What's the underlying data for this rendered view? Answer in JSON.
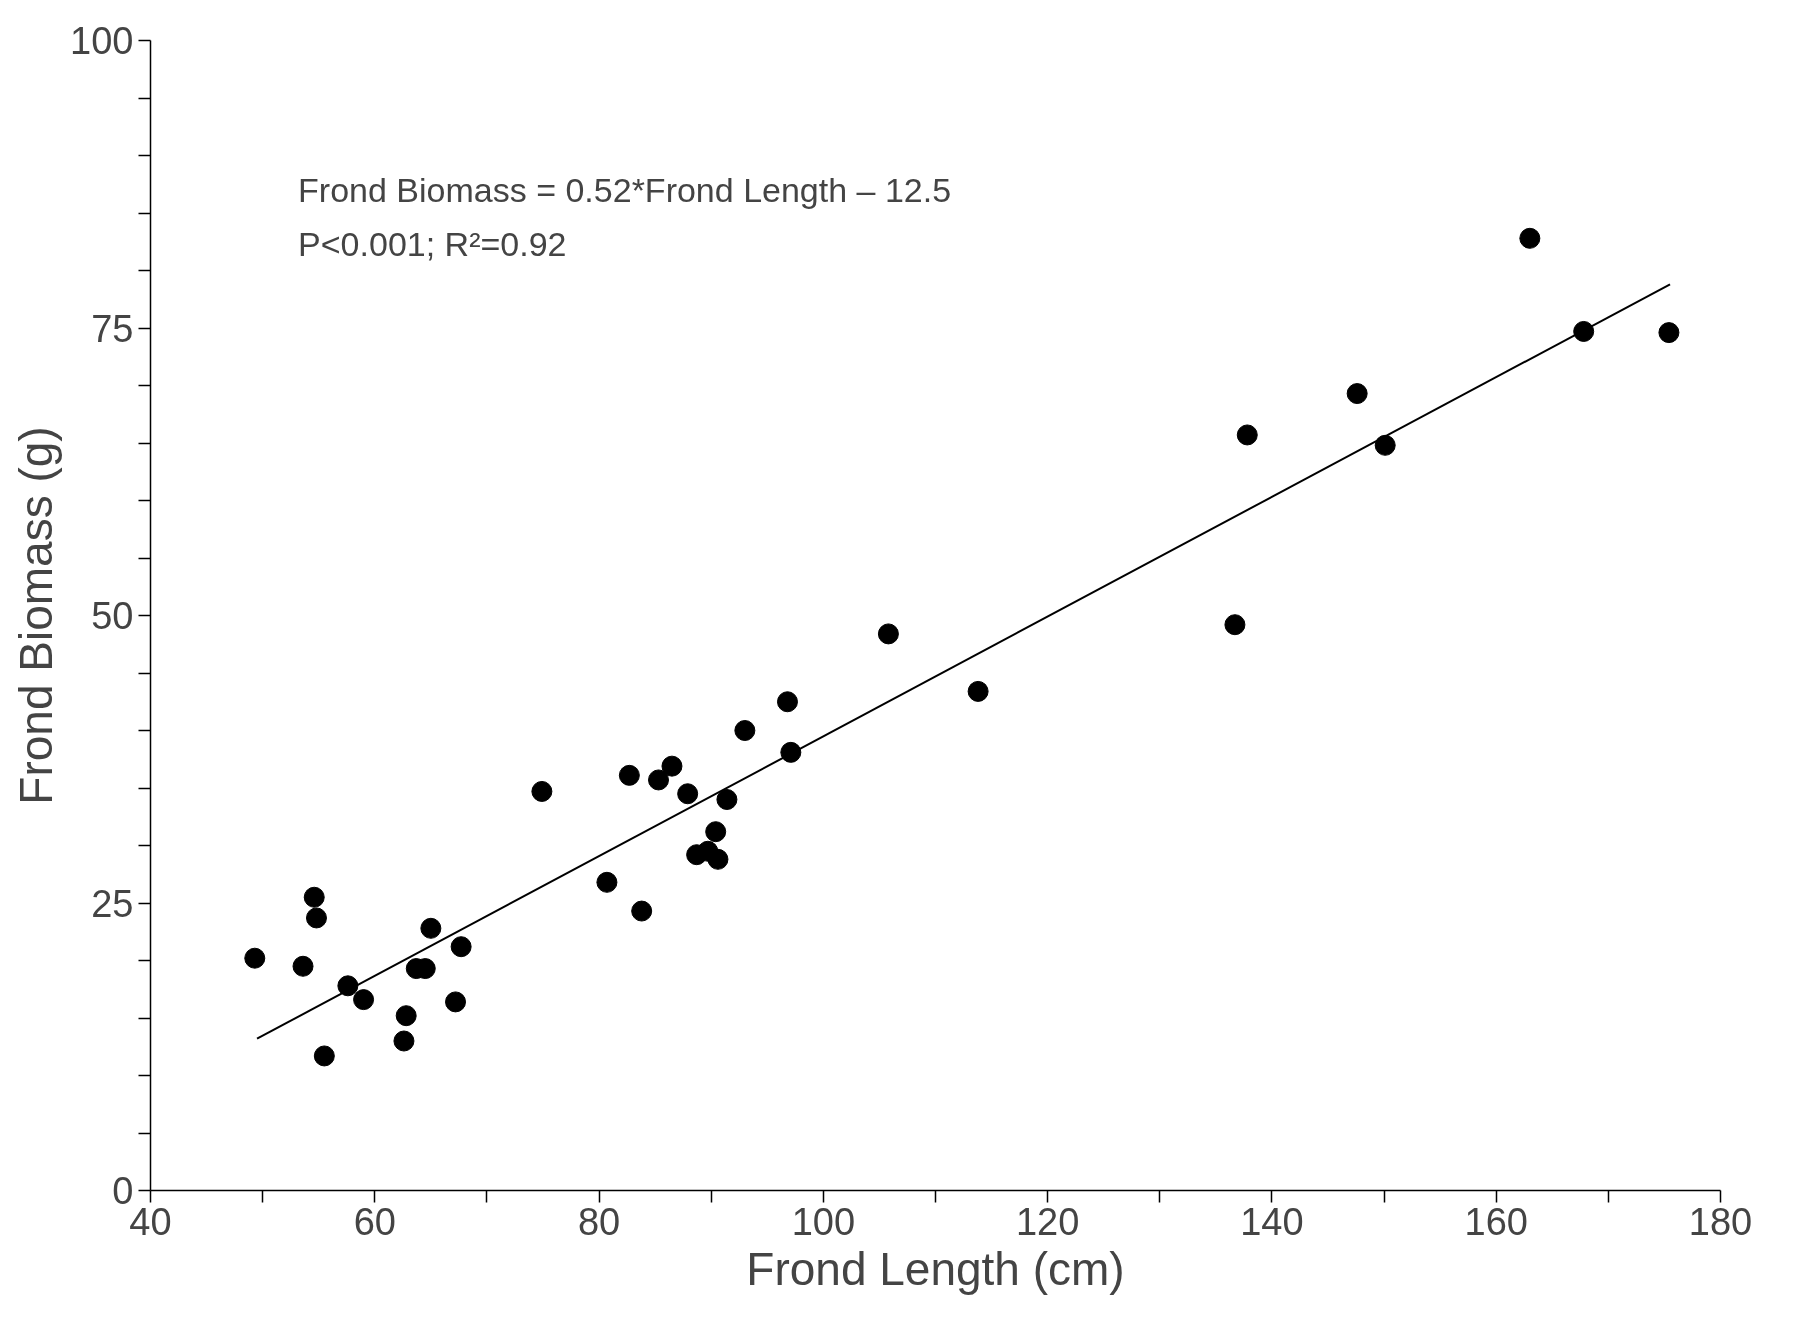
{
  "chart_data": {
    "type": "scatter",
    "xlabel": "Frond Length (cm)",
    "ylabel": "Frond Biomass (g)",
    "xlim": [
      40,
      180
    ],
    "ylim": [
      0,
      100
    ],
    "xticks": [
      40,
      {
        "value": 50,
        "label": null
      },
      60,
      {
        "value": 70,
        "label": null
      },
      80,
      {
        "value": 90,
        "label": null
      },
      100,
      {
        "value": 110,
        "label": null
      },
      120,
      {
        "value": 130,
        "label": null
      },
      140,
      {
        "value": 150,
        "label": null
      },
      160,
      {
        "value": 170,
        "label": null
      },
      180
    ],
    "yticks": [
      0,
      {
        "value": 5,
        "label": null
      },
      {
        "value": 10,
        "label": null
      },
      {
        "value": 15,
        "label": null
      },
      {
        "value": 20,
        "label": null
      },
      25,
      {
        "value": 30,
        "label": null
      },
      {
        "value": 35,
        "label": null
      },
      {
        "value": 40,
        "label": null
      },
      {
        "value": 45,
        "label": null
      },
      50,
      {
        "value": 55,
        "label": null
      },
      {
        "value": 60,
        "label": null
      },
      {
        "value": 65,
        "label": null
      },
      {
        "value": 70,
        "label": null
      },
      75,
      {
        "value": 80,
        "label": null
      },
      {
        "value": 85,
        "label": null
      },
      {
        "value": 90,
        "label": null
      },
      {
        "value": 95,
        "label": null
      },
      100
    ],
    "grid": false,
    "annotations": [
      "Frond Biomass = 0.52*Frond Length – 12.5",
      "P<0.001; R²=0.92"
    ],
    "series": [
      {
        "color": "#000000",
        "marker": "circle",
        "x": [
          49.3,
          53.6,
          54.6,
          54.8,
          55.5,
          57.6,
          59.0,
          62.8,
          62.6,
          63.7,
          64.5,
          65.0,
          67.2,
          67.7,
          74.9,
          80.7,
          82.7,
          83.8,
          85.3,
          86.5,
          87.9,
          88.7,
          89.7,
          90.4,
          90.6,
          91.4,
          93.0,
          96.8,
          97.1,
          105.8,
          113.8,
          136.7,
          137.8,
          147.6,
          150.1,
          163.0,
          167.8,
          175.4
        ],
        "values": [
          20.2,
          19.5,
          25.5,
          23.7,
          11.7,
          17.8,
          16.6,
          15.2,
          13.0,
          19.3,
          19.3,
          22.8,
          16.4,
          21.2,
          34.7,
          26.8,
          36.1,
          24.3,
          35.7,
          36.9,
          34.5,
          29.2,
          29.5,
          31.2,
          28.8,
          34.0,
          40.0,
          42.5,
          38.1,
          48.4,
          43.4,
          49.2,
          65.7,
          69.3,
          64.8,
          82.8,
          74.7,
          74.6
        ]
      },
      {
        "type": "line",
        "color": "#000000",
        "x": [
          49.5,
          175.5
        ],
        "values": [
          13.2,
          78.8
        ],
        "line_style": "solid",
        "marker": "none"
      }
    ]
  }
}
